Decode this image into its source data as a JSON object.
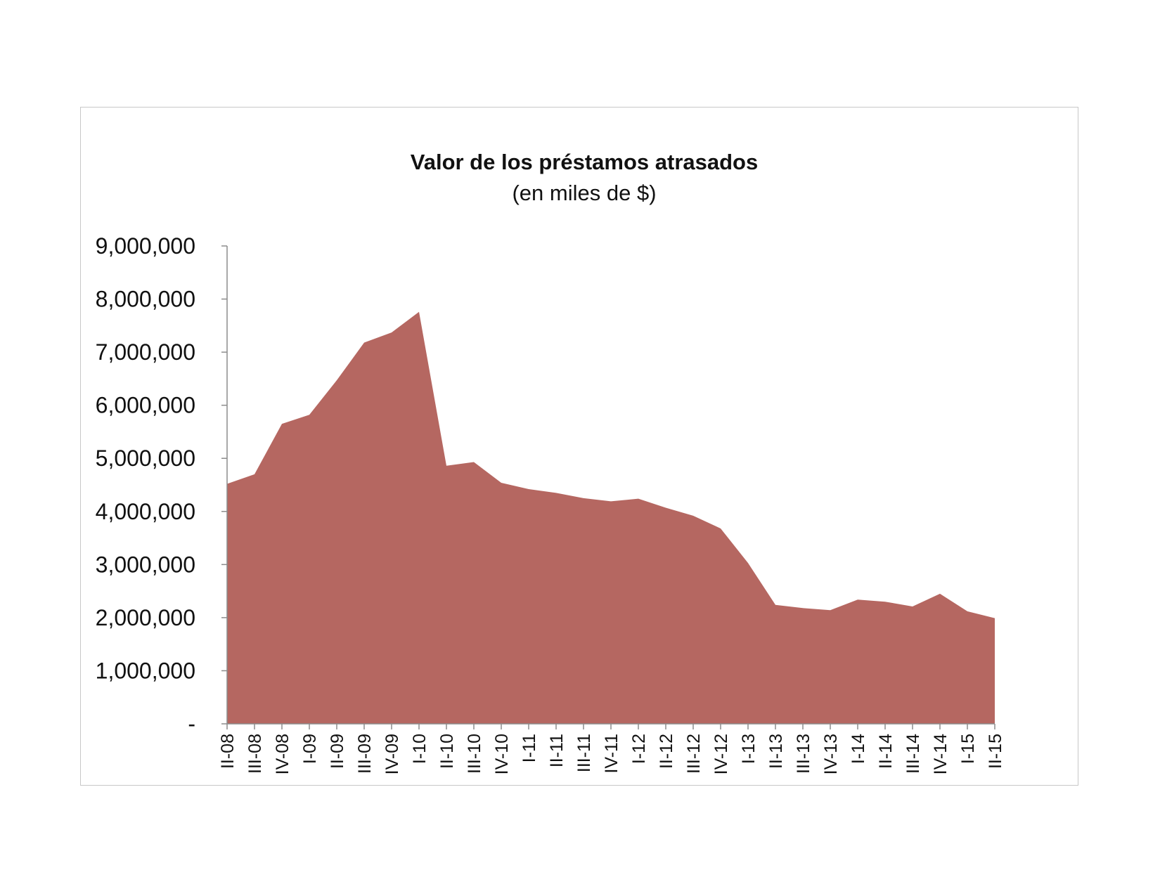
{
  "chart_data": {
    "type": "area",
    "title": "Valor de los préstamos atrasados",
    "subtitle": "(en miles de $)",
    "xlabel": "",
    "ylabel": "",
    "ylim": [
      0,
      9000000
    ],
    "y_ticks": [
      0,
      1000000,
      2000000,
      3000000,
      4000000,
      5000000,
      6000000,
      7000000,
      8000000,
      9000000
    ],
    "y_tick_labels": [
      "-",
      "1,000,000",
      "2,000,000",
      "3,000,000",
      "4,000,000",
      "5,000,000",
      "6,000,000",
      "7,000,000",
      "8,000,000",
      "9,000,000"
    ],
    "grid": false,
    "legend": "none",
    "categories": [
      "II-08",
      "III-08",
      "IV-08",
      "I-09",
      "II-09",
      "III-09",
      "IV-09",
      "I-10",
      "II-10",
      "III-10",
      "IV-10",
      "I-11",
      "II-11",
      "III-11",
      "IV-11",
      "I-12",
      "II-12",
      "III-12",
      "IV-12",
      "I-13",
      "II-13",
      "III-13",
      "IV-13",
      "I-14",
      "II-14",
      "III-14",
      "IV-14",
      "I-15",
      "II-15"
    ],
    "series": [
      {
        "color": "#b56761",
        "values": [
          4520000,
          4700000,
          5650000,
          5820000,
          6470000,
          7180000,
          7370000,
          7760000,
          4860000,
          4930000,
          4540000,
          4420000,
          4350000,
          4250000,
          4190000,
          4240000,
          4070000,
          3920000,
          3680000,
          3030000,
          2240000,
          2180000,
          2140000,
          2340000,
          2300000,
          2210000,
          2450000,
          2120000,
          1990000
        ]
      }
    ]
  }
}
